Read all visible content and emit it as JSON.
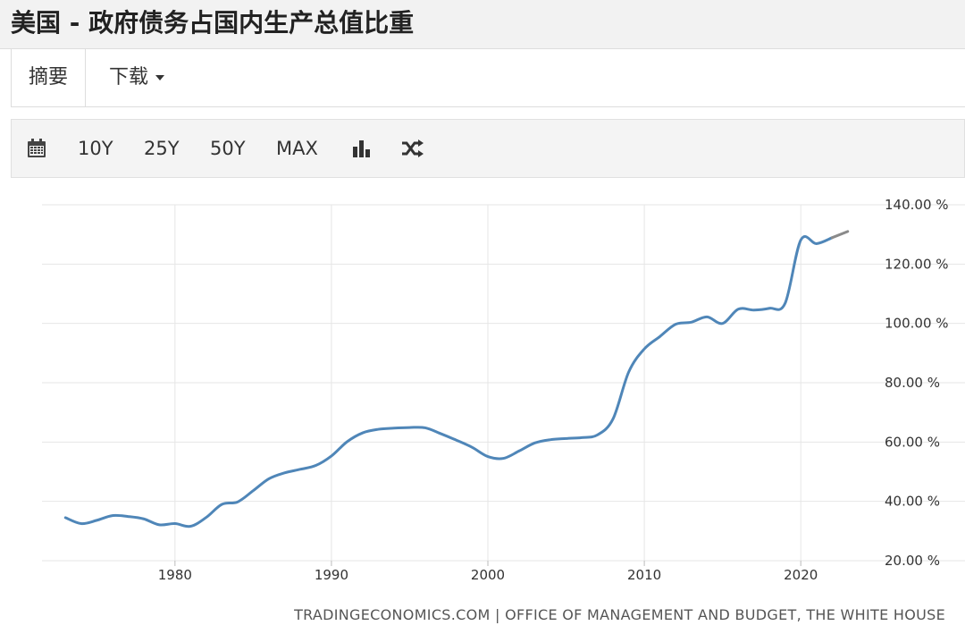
{
  "header": {
    "title": "美国 - 政府债务占国内生产总值比重"
  },
  "tabs": {
    "summary": "摘要",
    "download": "下载"
  },
  "toolbar": {
    "range_buttons": [
      "10Y",
      "25Y",
      "50Y",
      "MAX"
    ],
    "icons": [
      "calendar-icon",
      "bar-chart-icon",
      "shuffle-icon"
    ]
  },
  "chart_data": {
    "type": "line",
    "title": "",
    "xlabel": "",
    "ylabel": "",
    "x_ticks": [
      "1980",
      "1990",
      "2000",
      "2010",
      "2020"
    ],
    "y_ticks": [
      "20.00 %",
      "40.00 %",
      "60.00 %",
      "80.00 %",
      "100.00 %",
      "120.00 %",
      "140.00 %"
    ],
    "xlim": [
      1971.5,
      2024.5
    ],
    "ylim": [
      20,
      140
    ],
    "grid": true,
    "series": [
      {
        "color": "#4f86b8",
        "x": [
          1973,
          1974,
          1975,
          1976,
          1977,
          1978,
          1979,
          1980,
          1981,
          1982,
          1983,
          1984,
          1985,
          1986,
          1987,
          1988,
          1989,
          1990,
          1991,
          1992,
          1993,
          1994,
          1995,
          1996,
          1997,
          1998,
          1999,
          2000,
          2001,
          2002,
          2003,
          2004,
          2005,
          2006,
          2007,
          2008,
          2009,
          2010,
          2011,
          2012,
          2013,
          2014,
          2015,
          2016,
          2017,
          2018,
          2019,
          2020,
          2021,
          2022
        ],
        "y": [
          34.5,
          32.5,
          33.6,
          35.2,
          34.9,
          34.1,
          32.1,
          32.5,
          31.6,
          34.6,
          39.0,
          39.8,
          43.6,
          47.6,
          49.6,
          50.8,
          52.1,
          55.3,
          60.1,
          63.1,
          64.3,
          64.7,
          64.9,
          64.8,
          62.8,
          60.6,
          58.2,
          55.1,
          54.5,
          57.0,
          59.7,
          60.8,
          61.2,
          61.5,
          62.4,
          67.8,
          83.6,
          91.4,
          95.6,
          99.7,
          100.4,
          102.2,
          100.0,
          104.8,
          104.5,
          105.1,
          106.8,
          128.1,
          126.9,
          128.9
        ]
      },
      {
        "color": "#8a8a8a",
        "x": [
          2022,
          2023
        ],
        "y": [
          128.9,
          131.0
        ]
      }
    ]
  },
  "footer": {
    "source": "TRADINGECONOMICS.COM | OFFICE OF MANAGEMENT AND BUDGET, THE WHITE HOUSE"
  }
}
